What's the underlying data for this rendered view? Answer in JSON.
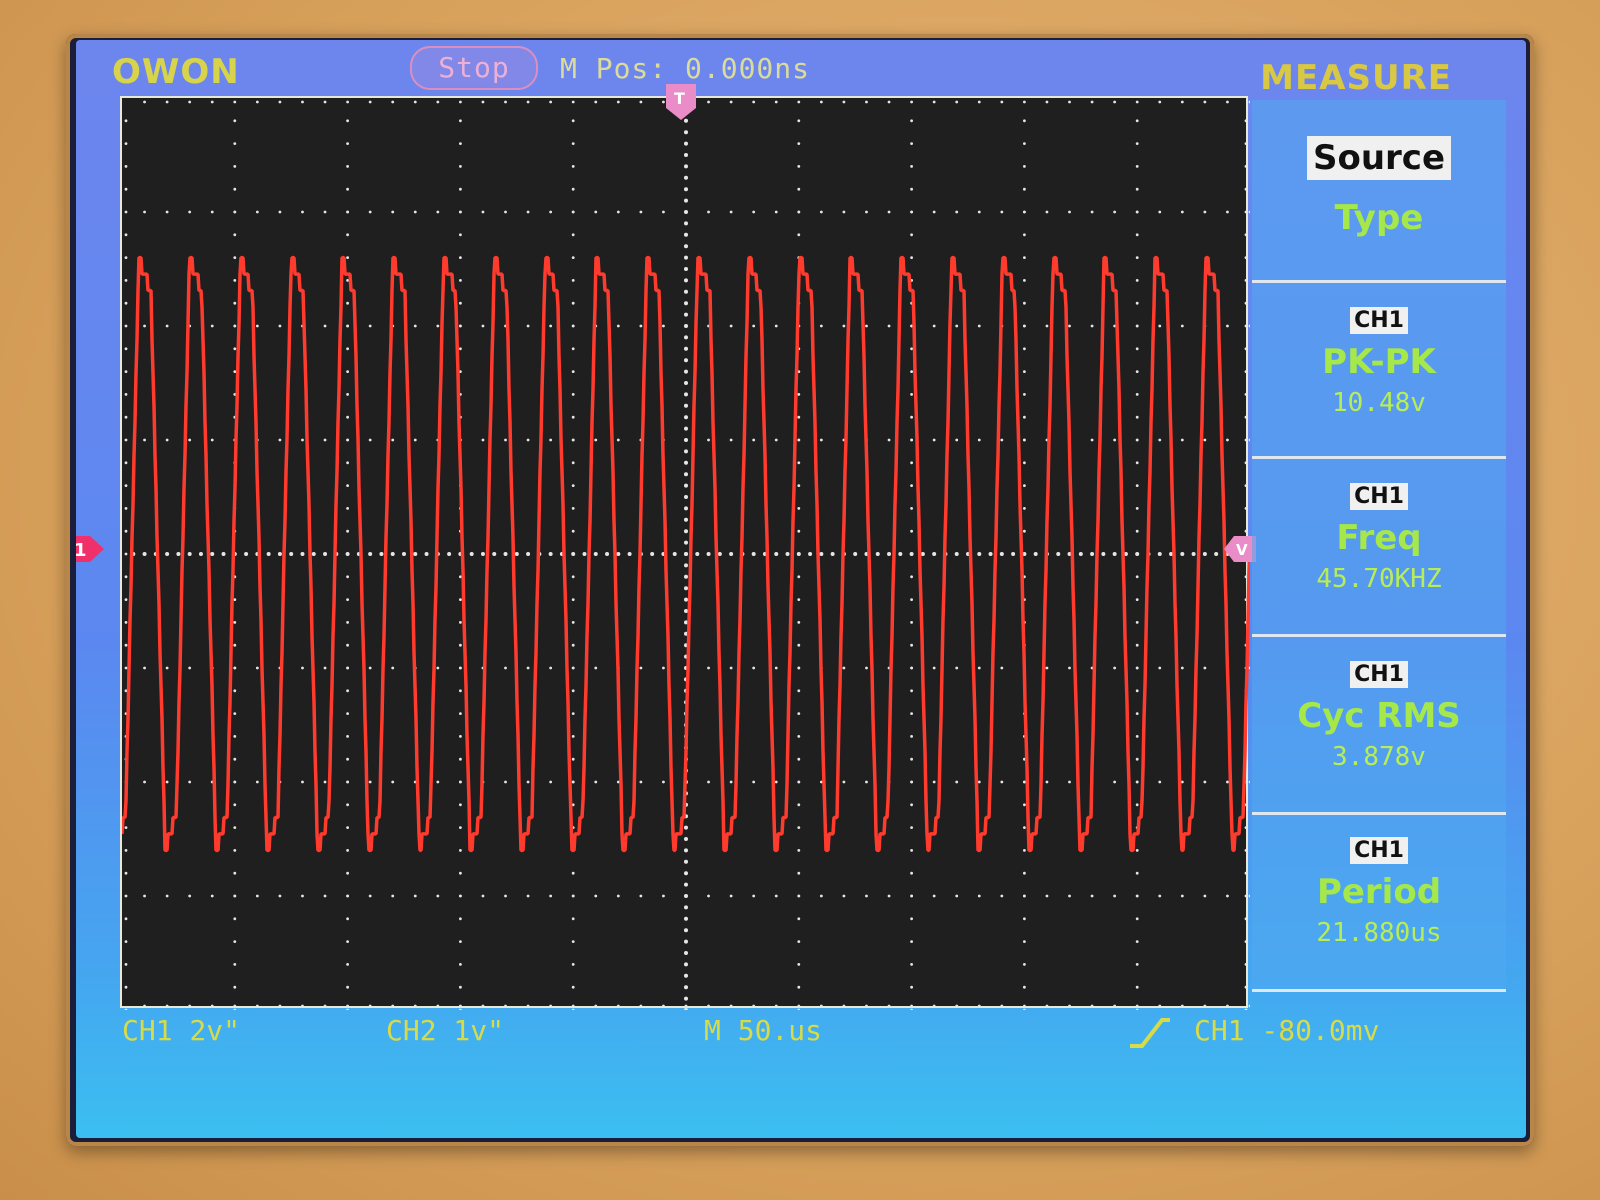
{
  "header": {
    "brand": "OWON",
    "run_state": "Stop",
    "m_pos": "M Pos: 0.000ns",
    "menu_title": "MEASURE"
  },
  "markers": {
    "ch1": "1",
    "trigger": "T",
    "trigger_level": "V"
  },
  "side_menu": {
    "source_label": "Source",
    "type_label": "Type",
    "measurements": [
      {
        "channel": "CH1",
        "type": "PK-PK",
        "value": "10.48v"
      },
      {
        "channel": "CH1",
        "type": "Freq",
        "value": "45.70KHZ"
      },
      {
        "channel": "CH1",
        "type": "Cyc RMS",
        "value": "3.878v"
      },
      {
        "channel": "CH1",
        "type": "Period",
        "value": "21.880us"
      }
    ]
  },
  "status_bar": {
    "ch1_scale": "CH1 2v\"",
    "ch2_scale": "CH2 1v\"",
    "timebase": "M 50.us",
    "trigger": "CH1 -80.0mv"
  },
  "colors": {
    "trace": "#ff3b2e",
    "grid_dots": "#e6e6e6",
    "label_green": "#a6e84a",
    "status_yellow": "#d6db4a"
  },
  "waveform": {
    "cycles_visible": 22.2,
    "peak_to_peak_divisions": 5.2,
    "center_divisions": 0
  }
}
